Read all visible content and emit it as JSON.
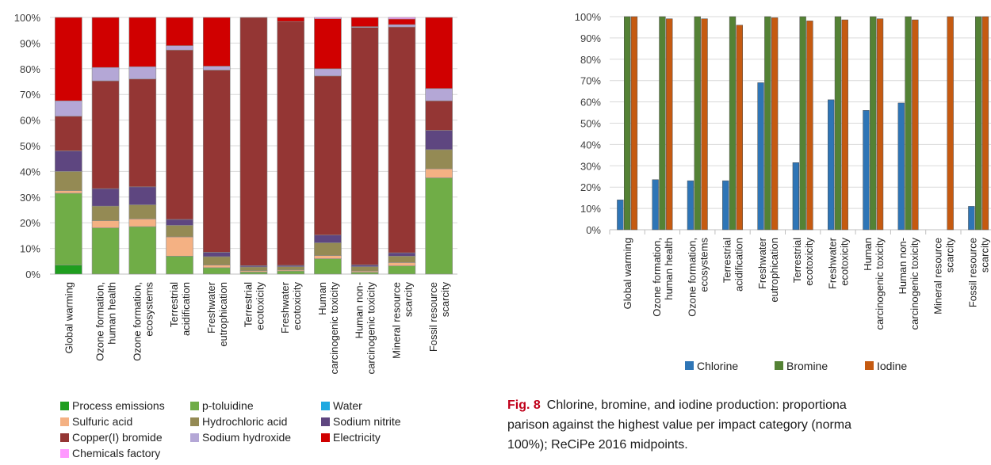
{
  "caption": {
    "label": "Fig. 8",
    "lines": [
      "Chlorine, bromine, and iodine production: proportiona",
      "parison against the highest value per impact category (norma",
      "100%); ReCiPe 2016 midpoints."
    ]
  },
  "colors": {
    "Process emissions": "#1f9e1f",
    "p-toluidine": "#70ad47",
    "Water": "#1fa8e0",
    "Sulfuric acid": "#f4b183",
    "Hydrochloric acid": "#948a54",
    "Sodium nitrite": "#5e4680",
    "Copper(I) bromide": "#943634",
    "Sodium hydroxide": "#b4a7d6",
    "Electricity": "#d00000",
    "Chemicals factory": "#ff99ff",
    "Chlorine": "#2e75b6",
    "Bromine": "#548235",
    "Iodine": "#c55a11"
  },
  "chart_data": [
    {
      "type": "bar",
      "stacked": true,
      "ylim": [
        0,
        100
      ],
      "yticks": [
        "0%",
        "10%",
        "20%",
        "30%",
        "40%",
        "50%",
        "60%",
        "70%",
        "80%",
        "90%",
        "100%"
      ],
      "categories": [
        [
          "Global warming"
        ],
        [
          "Ozone formation,",
          "human health"
        ],
        [
          "Ozone formation,",
          "ecosystems"
        ],
        [
          "Terrestrial",
          "acidification"
        ],
        [
          "Freshwater",
          "eutrophication"
        ],
        [
          "Terrestrial",
          "ecotoxicity"
        ],
        [
          "Freshwater",
          "ecotoxicity"
        ],
        [
          "Human",
          "carcinogenic toxicity"
        ],
        [
          "Human non-",
          "carcinogenic toxicity"
        ],
        [
          "Mineral resource",
          "scarcity"
        ],
        [
          "Fossil resource",
          "scarcity"
        ]
      ],
      "series": [
        {
          "name": "Process emissions",
          "values": [
            3.5,
            0,
            0,
            0,
            0,
            0,
            0,
            0,
            0,
            0,
            0
          ]
        },
        {
          "name": "p-toluidine",
          "values": [
            28,
            18,
            18.5,
            7,
            2.5,
            0.8,
            1.2,
            6,
            0.7,
            3.2,
            37.5
          ]
        },
        {
          "name": "Water",
          "values": [
            0,
            0,
            0,
            0,
            0,
            0,
            0,
            0,
            0,
            0,
            0
          ]
        },
        {
          "name": "Sulfuric acid",
          "values": [
            1,
            2.8,
            3,
            7.5,
            1,
            0.5,
            0.4,
            1.2,
            0.5,
            1.3,
            3.5
          ]
        },
        {
          "name": "Hydrochloric acid",
          "values": [
            7.5,
            5.7,
            5.5,
            4.5,
            3.3,
            1.5,
            1.3,
            5,
            1.7,
            2.5,
            7.5
          ]
        },
        {
          "name": "Sodium nitrite",
          "values": [
            8,
            6.8,
            7,
            2.3,
            1.7,
            0.5,
            0.5,
            3,
            0.7,
            1.3,
            7.5
          ]
        },
        {
          "name": "Copper(I) bromide",
          "values": [
            13.5,
            42,
            42,
            66,
            71,
            96.7,
            95,
            62,
            92.5,
            88,
            11.5
          ]
        },
        {
          "name": "Sodium hydroxide",
          "values": [
            6,
            5.2,
            4.8,
            1.7,
            1.5,
            0,
            0,
            2.8,
            0.3,
            0.9,
            4.8
          ]
        },
        {
          "name": "Electricity",
          "values": [
            32.5,
            19.5,
            19.2,
            11,
            19,
            0,
            1.6,
            19.5,
            3.6,
            2.2,
            27.7
          ]
        },
        {
          "name": "Chemicals factory",
          "values": [
            0,
            0,
            0,
            0,
            0,
            0,
            0,
            0.5,
            0,
            0.6,
            0
          ]
        }
      ]
    },
    {
      "type": "bar",
      "stacked": false,
      "ylim": [
        0,
        100
      ],
      "yticks": [
        "0%",
        "10%",
        "20%",
        "30%",
        "40%",
        "50%",
        "60%",
        "70%",
        "80%",
        "90%",
        "100%"
      ],
      "categories": [
        [
          "Global warming"
        ],
        [
          "Ozone formation,",
          "human health"
        ],
        [
          "Ozone formation,",
          "ecosystems"
        ],
        [
          "Terrestrial",
          "acidification"
        ],
        [
          "Freshwater",
          "eutrophication"
        ],
        [
          "Terrestrial",
          "ecotoxicity"
        ],
        [
          "Freshwater",
          "ecotoxicity"
        ],
        [
          "Human",
          "carcinogenic toxicity"
        ],
        [
          "Human non-",
          "carcinogenic toxicity"
        ],
        [
          "Mineral resource",
          "scarcity"
        ],
        [
          "Fossil resource",
          "scarcity"
        ]
      ],
      "series": [
        {
          "name": "Chlorine",
          "values": [
            14,
            23.5,
            23,
            23,
            69,
            31.5,
            61,
            56,
            59.5,
            0,
            11
          ]
        },
        {
          "name": "Bromine",
          "values": [
            100,
            100,
            100,
            100,
            100,
            100,
            100,
            100,
            100,
            0,
            100
          ]
        },
        {
          "name": "Iodine",
          "values": [
            100,
            99,
            99,
            96,
            99.5,
            98,
            98.5,
            99,
            98.5,
            100,
            100
          ]
        }
      ]
    }
  ]
}
